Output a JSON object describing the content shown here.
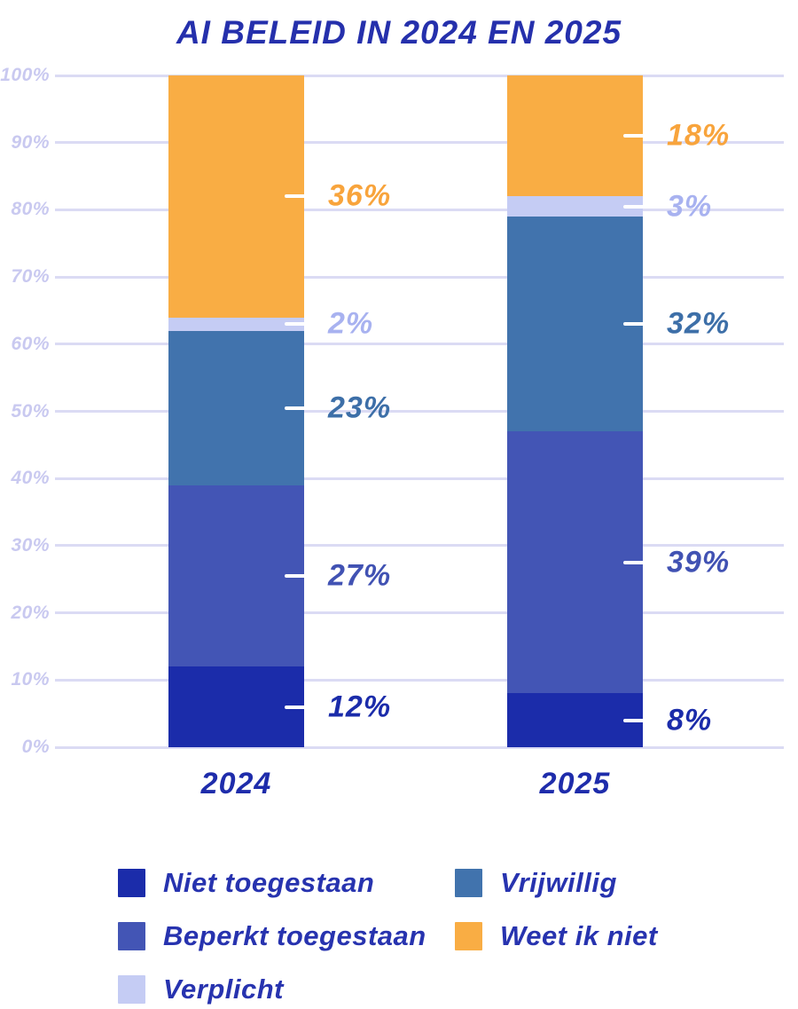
{
  "title": "AI BELEID IN 2024 EN 2025",
  "colors": {
    "background": "#FFFFFF",
    "grid": "#DBDBF4",
    "axis_tick_label": "#C9C9F0",
    "title_text": "#2530AC",
    "category_label": "#1E2CAB",
    "legend_text": "#2733AF",
    "tick_mark": "#FFFFFF"
  },
  "chart_data": {
    "type": "bar",
    "stacked": true,
    "title": "AI BELEID IN 2024 EN 2025",
    "categories": [
      "2024",
      "2025"
    ],
    "series": [
      {
        "name": "Niet toegestaan",
        "color": "#1B2CAA",
        "label_color": "#1B2CAA",
        "values": [
          12,
          8
        ]
      },
      {
        "name": "Beperkt toegestaan",
        "color": "#4355B5",
        "label_color": "#4152B3",
        "values": [
          27,
          39
        ]
      },
      {
        "name": "Vrijwillig",
        "color": "#4173AD",
        "label_color": "#3D6FA8",
        "values": [
          23,
          32
        ]
      },
      {
        "name": "Verplicht",
        "color": "#C5CCF4",
        "label_color": "#A8B2F0",
        "values": [
          2,
          3
        ]
      },
      {
        "name": "Weet ik niet",
        "color": "#F9AD44",
        "label_color": "#F8A43C",
        "values": [
          36,
          18
        ]
      }
    ],
    "value_label_suffix": "%",
    "y_axis": {
      "min": 0,
      "max": 100,
      "tick_step": 10,
      "tick_labels": [
        "0%",
        "10%",
        "20%",
        "30%",
        "40%",
        "50%",
        "60%",
        "70%",
        "80%",
        "90%",
        "100%"
      ],
      "grid": true
    },
    "legend_position": "bottom",
    "legend_columns": [
      [
        0,
        1,
        3
      ],
      [
        2,
        4
      ]
    ]
  }
}
